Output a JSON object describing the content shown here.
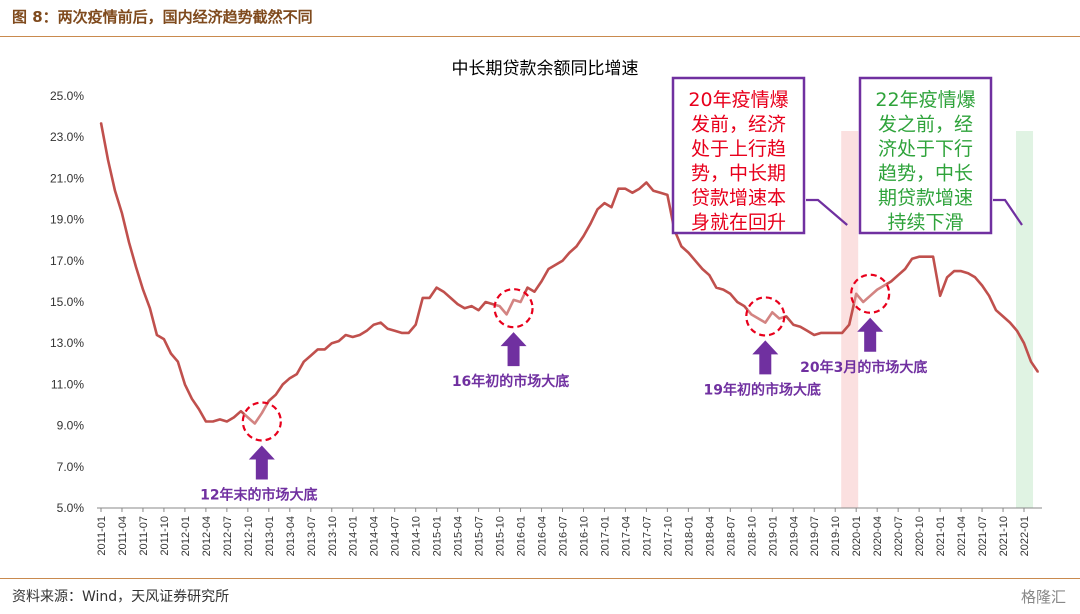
{
  "header": {
    "figure_title": "图 8：两次疫情前后，国内经济趋势截然不同"
  },
  "footer": {
    "source": "资料来源：Wind，天风证券研究所",
    "watermark": "格隆汇"
  },
  "colors": {
    "line": "#c0504d",
    "annotation": "#7030a0",
    "box_red_text": "#e8001c",
    "box_green_text": "#2fa33b",
    "band_red": "#fbe0e0",
    "band_green": "#e0f3e3"
  },
  "chart_data": {
    "type": "line",
    "title": "中长期贷款余额同比增速",
    "ylim": [
      5,
      25
    ],
    "yticks": [
      "5.0%",
      "7.0%",
      "9.0%",
      "11.0%",
      "13.0%",
      "15.0%",
      "17.0%",
      "19.0%",
      "21.0%",
      "23.0%",
      "25.0%"
    ],
    "xticks": [
      "2011-01",
      "2011-04",
      "2011-07",
      "2011-10",
      "2012-01",
      "2012-04",
      "2012-07",
      "2012-10",
      "2013-01",
      "2013-04",
      "2013-07",
      "2013-10",
      "2014-01",
      "2014-04",
      "2014-07",
      "2014-10",
      "2015-01",
      "2015-04",
      "2015-07",
      "2015-10",
      "2016-01",
      "2016-04",
      "2016-07",
      "2016-10",
      "2017-01",
      "2017-04",
      "2017-07",
      "2017-10",
      "2018-01",
      "2018-04",
      "2018-07",
      "2018-10",
      "2019-01",
      "2019-04",
      "2019-07",
      "2019-10",
      "2020-01",
      "2020-04",
      "2020-07",
      "2020-10",
      "2021-01",
      "2021-04",
      "2021-07",
      "2021-10",
      "2022-01"
    ],
    "grid": false,
    "series": [
      {
        "start": "2011-01",
        "values": [
          23.7,
          21.9,
          20.4,
          19.3,
          17.9,
          16.7,
          15.6,
          14.7,
          13.4,
          13.2,
          12.5,
          12.1,
          11.0,
          10.3,
          9.8,
          9.2,
          9.2,
          9.3,
          9.2,
          9.4,
          9.7,
          9.4,
          9.1,
          9.6,
          10.2,
          10.5,
          11.0,
          11.3,
          11.5,
          12.1,
          12.4,
          12.7,
          12.7,
          13.0,
          13.1,
          13.4,
          13.3,
          13.4,
          13.6,
          13.9,
          14.0,
          13.7,
          13.6,
          13.5,
          13.5,
          13.9,
          15.2,
          15.2,
          15.7,
          15.5,
          15.2,
          14.9,
          14.7,
          14.8,
          14.6,
          15.0,
          14.9,
          14.8,
          14.4,
          15.1,
          15.0,
          15.7,
          15.5,
          16.0,
          16.6,
          16.8,
          17.0,
          17.4,
          17.7,
          18.2,
          18.8,
          19.5,
          19.8,
          19.6,
          20.5,
          20.5,
          20.3,
          20.5,
          20.8,
          20.4,
          20.3,
          20.2,
          18.5,
          17.7,
          17.4,
          17.0,
          16.6,
          16.3,
          15.7,
          15.6,
          15.4,
          15.0,
          14.8,
          14.4,
          14.2,
          14.0,
          14.5,
          14.2,
          14.3,
          13.9,
          13.8,
          13.6,
          13.4,
          13.5,
          13.5,
          13.5,
          13.5,
          13.9,
          15.4,
          15.0,
          15.3,
          15.6,
          15.8,
          16.0,
          16.3,
          16.6,
          17.1,
          17.2,
          17.2,
          17.2,
          15.3,
          16.2,
          16.5,
          16.5,
          16.4,
          16.2,
          15.8,
          15.3,
          14.6,
          14.3,
          14.0,
          13.6,
          13.0,
          12.1,
          11.6
        ]
      }
    ],
    "annotations": [
      {
        "label": "12年末的市场大底",
        "x": "2012-12",
        "y": 9.2
      },
      {
        "label": "16年初的市场大底",
        "x": "2015-12",
        "y": 14.7
      },
      {
        "label": "19年初的市场大底",
        "x": "2018-12",
        "y": 14.3
      },
      {
        "label": "20年3月的市场大底",
        "x": "2020-03",
        "y": 15.4
      }
    ],
    "boxes": [
      {
        "lines": [
          "20年疫情爆",
          "发前，经济",
          "处于上行趋",
          "势，中长期",
          "贷款增速本",
          "身就在回升"
        ],
        "color": "red",
        "band_x": "2019-12"
      },
      {
        "lines": [
          "22年疫情爆",
          "发之前，经",
          "济处于下行",
          "趋势，中长",
          "期贷款增速",
          "持续下滑"
        ],
        "color": "green",
        "band_x": "2022-01"
      }
    ]
  }
}
